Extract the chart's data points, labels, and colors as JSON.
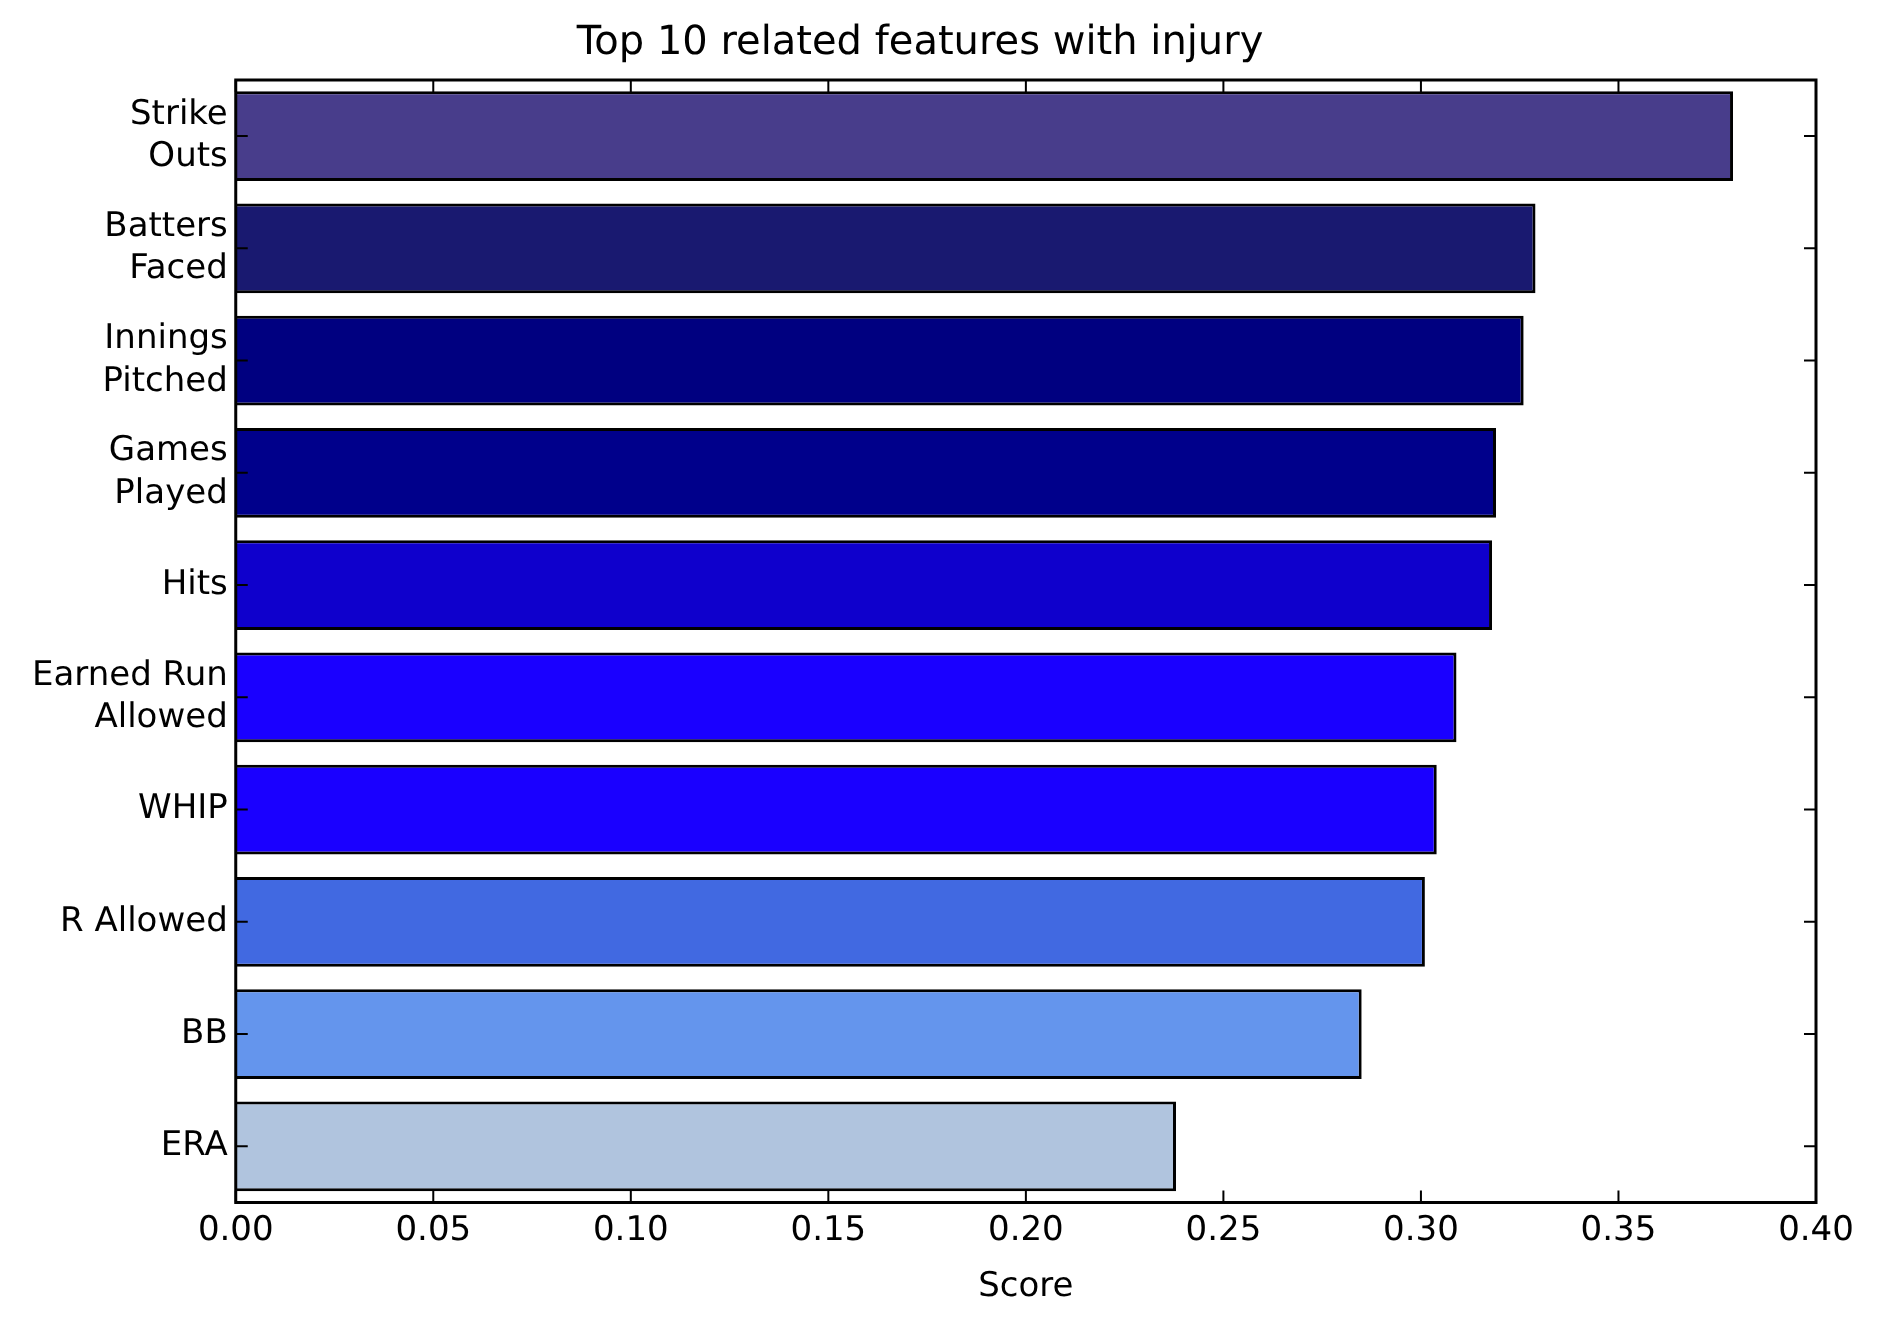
{
  "chart_data": {
    "type": "bar",
    "orientation": "horizontal",
    "title": "Top 10 related features with injury",
    "xlabel": "Score",
    "categories": [
      "Strike\nOuts",
      "Batters\nFaced",
      "Innings\nPitched",
      "Games\nPlayed",
      "Hits",
      "Earned Run\nAllowed",
      "WHIP",
      "R Allowed",
      "BB",
      "ERA"
    ],
    "values": [
      0.379,
      0.329,
      0.326,
      0.319,
      0.318,
      0.309,
      0.304,
      0.301,
      0.285,
      0.238
    ],
    "colors": [
      "#483d8b",
      "#191970",
      "#000080",
      "#00008b",
      "#0f00cc",
      "#1a00ff",
      "#1a00ff",
      "#4169e1",
      "#6495ed",
      "#b0c4de"
    ],
    "xlim": [
      0,
      0.4
    ],
    "xticks": [
      {
        "value": 0,
        "label": "0.00"
      },
      {
        "value": 0.05,
        "label": "0.05"
      },
      {
        "value": 0.1,
        "label": "0.10"
      },
      {
        "value": 0.15,
        "label": "0.15"
      },
      {
        "value": 0.2,
        "label": "0.20"
      },
      {
        "value": 0.25,
        "label": "0.25"
      },
      {
        "value": 0.3,
        "label": "0.30"
      },
      {
        "value": 0.35,
        "label": "0.35"
      },
      {
        "value": 0.4,
        "label": "0.40"
      }
    ],
    "grid": false,
    "legend": false
  }
}
